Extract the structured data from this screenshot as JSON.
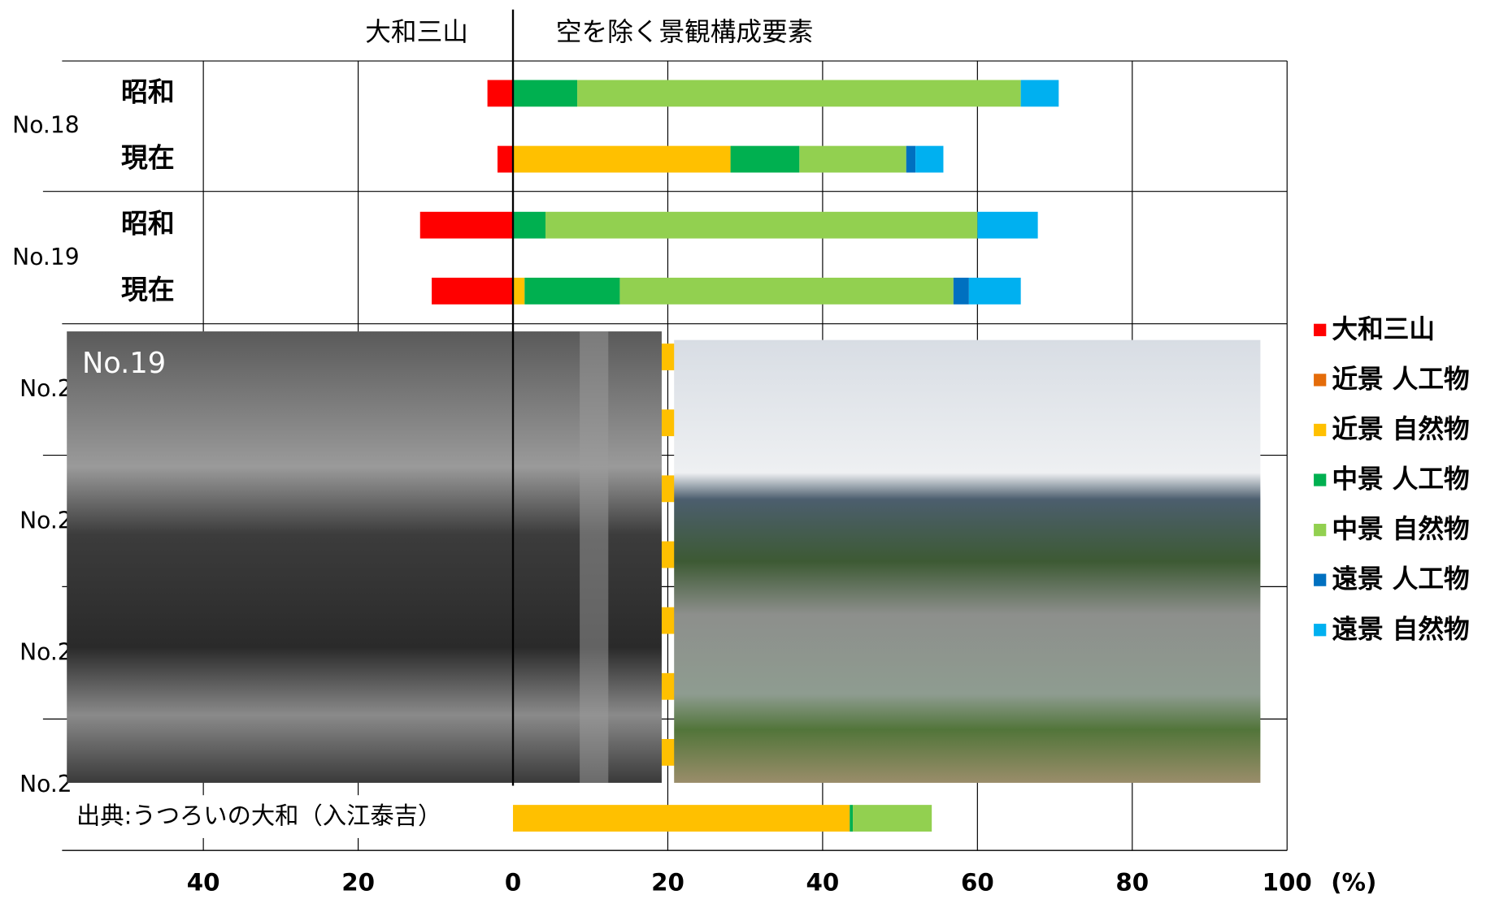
{
  "chart_data": {
    "type": "diverging-stacked-bar",
    "header_left": "大和三山",
    "header_right": "空を除く景観構成要素",
    "x_unit": "(%)",
    "photo_label": "No.19",
    "source": "出典:うつろいの大和（入江泰吉）",
    "groups": [
      "No.18",
      "No.19",
      "No.2",
      "No.2",
      "No.2",
      "No.2"
    ],
    "categories": [
      "昭和",
      "現在",
      "昭和",
      "現在",
      null,
      null,
      null,
      null,
      null,
      null,
      null,
      null
    ],
    "xlim": [
      -58.4,
      100
    ],
    "xticks": [
      {
        "value": -40,
        "label": "40"
      },
      {
        "value": -20,
        "label": "20"
      },
      0,
      20,
      40,
      60,
      80,
      100
    ],
    "grid": true,
    "legend": "right",
    "series": [
      {
        "name": "大和三山",
        "color": "#ff0000",
        "values": [
          -3.3,
          -2.0,
          -12.0,
          -10.5,
          null,
          null,
          null,
          null,
          null,
          null,
          null,
          null
        ]
      },
      {
        "name": "近景 人工物",
        "color": "#e46c0a",
        "values": [
          null,
          null,
          null,
          null,
          null,
          null,
          null,
          null,
          null,
          null,
          null,
          null
        ]
      },
      {
        "name": "近景 自然物",
        "color": "#ffc000",
        "values": [
          null,
          28.1,
          null,
          1.5,
          21,
          21,
          21,
          21,
          21,
          21,
          21,
          43.5
        ]
      },
      {
        "name": "中景 人工物",
        "color": "#00b050",
        "values": [
          8.3,
          8.9,
          4.2,
          12.3,
          null,
          null,
          null,
          null,
          null,
          null,
          null,
          0.4
        ]
      },
      {
        "name": "中景 自然物",
        "color": "#92d050",
        "values": [
          57.3,
          13.8,
          55.8,
          43.1,
          null,
          null,
          null,
          null,
          null,
          null,
          null,
          10.2
        ]
      },
      {
        "name": "遠景 人工物",
        "color": "#0070c0",
        "values": [
          null,
          1.2,
          null,
          2.0,
          null,
          null,
          null,
          null,
          null,
          null,
          null,
          null
        ]
      },
      {
        "name": "遠景 自然物",
        "color": "#00b0f0",
        "values": [
          4.9,
          3.6,
          7.8,
          6.7,
          null,
          null,
          null,
          null,
          null,
          null,
          null,
          null
        ]
      }
    ]
  }
}
